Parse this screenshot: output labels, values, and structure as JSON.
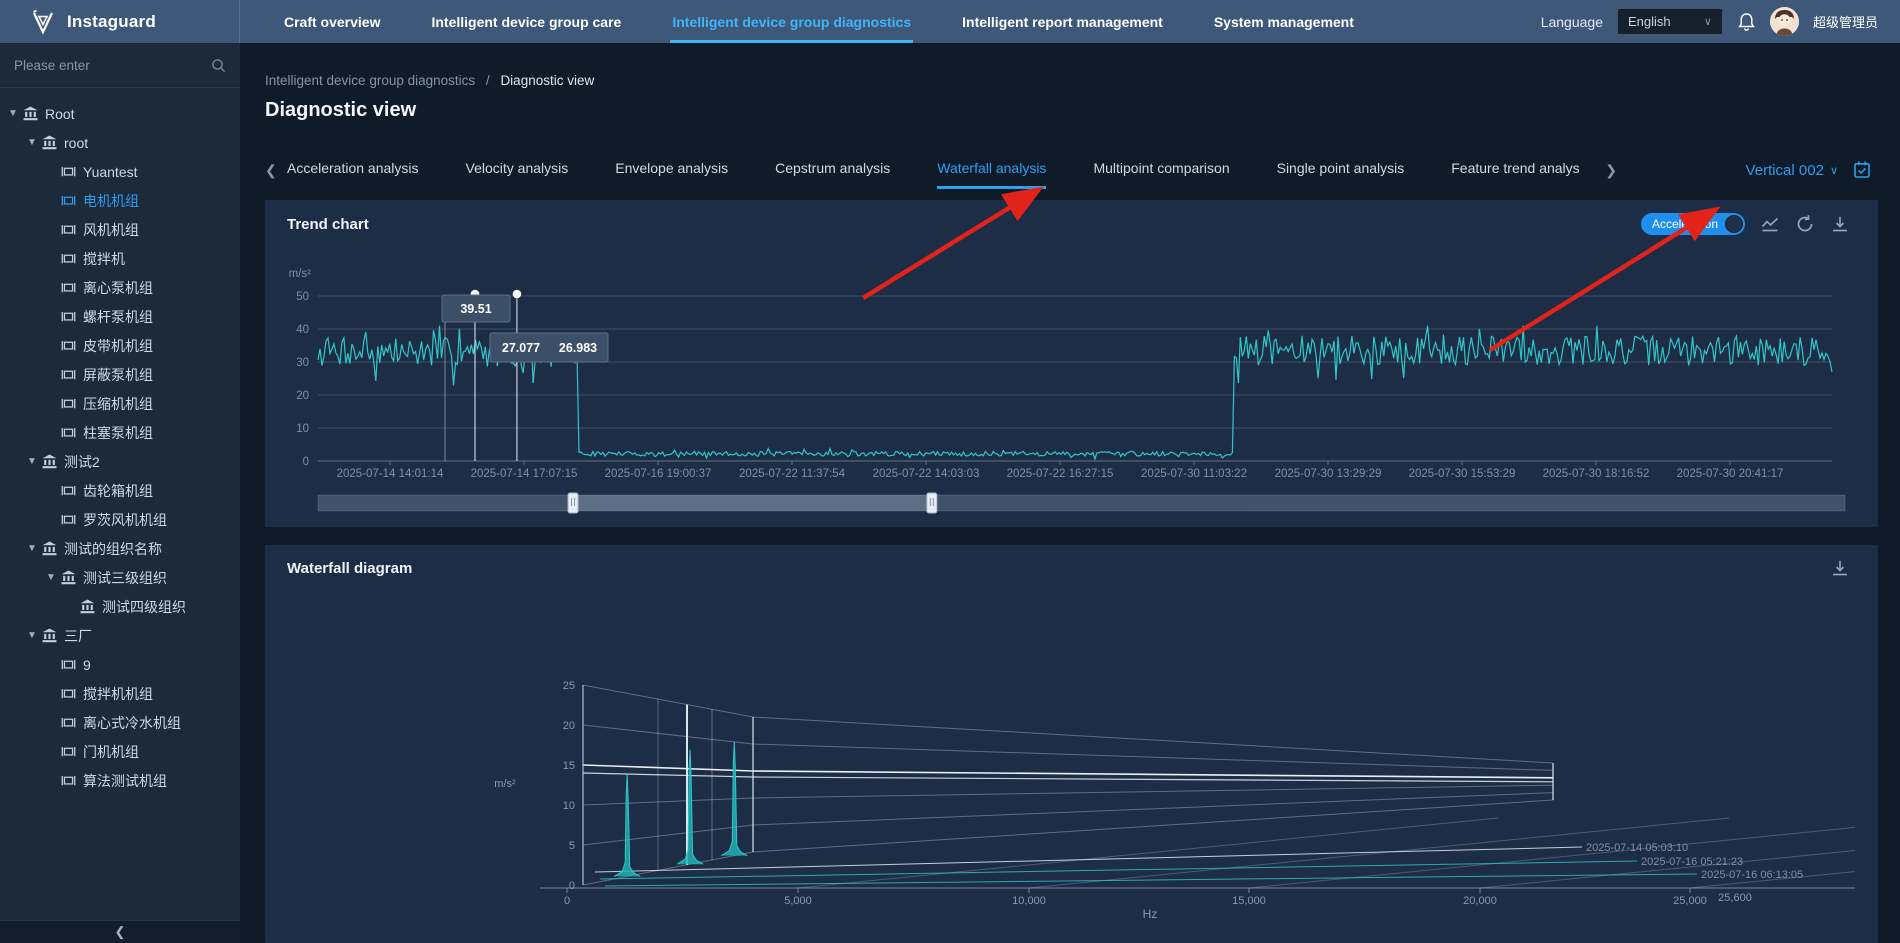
{
  "topnav": {
    "brand": "Instaguard",
    "items": [
      {
        "label": "Craft overview",
        "active": false
      },
      {
        "label": "Intelligent device group care",
        "active": false
      },
      {
        "label": "Intelligent device group diagnostics",
        "active": true
      },
      {
        "label": "Intelligent report management",
        "active": false
      },
      {
        "label": "System management",
        "active": false
      }
    ],
    "language_label": "Language",
    "language_value": "English",
    "user_name": "超级管理员"
  },
  "sidebar": {
    "search_placeholder": "Please enter",
    "tree": [
      {
        "label": "Root",
        "level": 0,
        "icon": "org",
        "caret": true,
        "selected": false
      },
      {
        "label": "root",
        "level": 1,
        "icon": "org",
        "caret": true,
        "selected": false
      },
      {
        "label": "Yuantest",
        "level": 2,
        "icon": "device",
        "caret": false,
        "selected": false
      },
      {
        "label": "电机机组",
        "level": 2,
        "icon": "device",
        "caret": false,
        "selected": true
      },
      {
        "label": "风机机组",
        "level": 2,
        "icon": "device",
        "caret": false,
        "selected": false
      },
      {
        "label": "搅拌机",
        "level": 2,
        "icon": "device",
        "caret": false,
        "selected": false
      },
      {
        "label": "离心泵机组",
        "level": 2,
        "icon": "device",
        "caret": false,
        "selected": false
      },
      {
        "label": "螺杆泵机组",
        "level": 2,
        "icon": "device",
        "caret": false,
        "selected": false
      },
      {
        "label": "皮带机机组",
        "level": 2,
        "icon": "device",
        "caret": false,
        "selected": false
      },
      {
        "label": "屏蔽泵机组",
        "level": 2,
        "icon": "device",
        "caret": false,
        "selected": false
      },
      {
        "label": "压缩机机组",
        "level": 2,
        "icon": "device",
        "caret": false,
        "selected": false
      },
      {
        "label": "柱塞泵机组",
        "level": 2,
        "icon": "device",
        "caret": false,
        "selected": false
      },
      {
        "label": "测试2",
        "level": 1,
        "icon": "org",
        "caret": true,
        "selected": false
      },
      {
        "label": "齿轮箱机组",
        "level": 2,
        "icon": "device",
        "caret": false,
        "selected": false
      },
      {
        "label": "罗茨风机机组",
        "level": 2,
        "icon": "device",
        "caret": false,
        "selected": false
      },
      {
        "label": "测试的组织名称",
        "level": 1,
        "icon": "org",
        "caret": true,
        "selected": false
      },
      {
        "label": "测试三级组织",
        "level": 2,
        "icon": "org",
        "caret": true,
        "selected": false
      },
      {
        "label": "测试四级组织",
        "level": 3,
        "icon": "org",
        "caret": false,
        "selected": false
      },
      {
        "label": "三厂",
        "level": 1,
        "icon": "org",
        "caret": true,
        "selected": false
      },
      {
        "label": "9",
        "level": 2,
        "icon": "device",
        "caret": false,
        "selected": false
      },
      {
        "label": "搅拌机机组",
        "level": 2,
        "icon": "device",
        "caret": false,
        "selected": false
      },
      {
        "label": "离心式冷水机组",
        "level": 2,
        "icon": "device",
        "caret": false,
        "selected": false
      },
      {
        "label": "门机机组",
        "level": 2,
        "icon": "device",
        "caret": false,
        "selected": false
      },
      {
        "label": "算法测试机组",
        "level": 2,
        "icon": "device",
        "caret": false,
        "selected": false
      }
    ]
  },
  "breadcrumb": {
    "parent": "Intelligent device group diagnostics",
    "separator": "/",
    "current": "Diagnostic view"
  },
  "page_title": "Diagnostic view",
  "tabs": {
    "items": [
      "Acceleration analysis",
      "Velocity analysis",
      "Envelope analysis",
      "Cepstrum analysis",
      "Waterfall analysis",
      "Multipoint comparison",
      "Single point analysis",
      "Feature trend analysis"
    ],
    "active_index": 4,
    "point_selector": "Vertical 002"
  },
  "trend_panel": {
    "title": "Trend chart",
    "toggle_label": "Acceleration"
  },
  "waterfall_panel": {
    "title": "Waterfall diagram"
  },
  "chart_data": [
    {
      "id": "trend",
      "type": "line",
      "title": "Trend chart",
      "ylabel": "m/s²",
      "ylim": [
        0,
        50
      ],
      "yticks": [
        0,
        10,
        20,
        30,
        40,
        50
      ],
      "xticklabels": [
        "2025-07-14 14:01:14",
        "2025-07-14 17:07:15",
        "2025-07-16 19:00:37",
        "2025-07-22 11:37:54",
        "2025-07-22 14:03:03",
        "2025-07-22 16:27:15",
        "2025-07-30 11:03:22",
        "2025-07-30 13:29:29",
        "2025-07-30 15:53:29",
        "2025-07-30 18:16:52",
        "2025-07-30 20:41:17"
      ],
      "grid": true,
      "legend_position": "none",
      "series": [
        {
          "name": "Acceleration",
          "color": "#2fc7c9",
          "segments": [
            {
              "from": 0.0,
              "to": 0.172,
              "base": 33,
              "noise": 4.5
            },
            {
              "from": 0.172,
              "to": 0.605,
              "base": 2.2,
              "noise": 0.7
            },
            {
              "from": 0.605,
              "to": 1.0,
              "base": 33.5,
              "noise": 4.5
            }
          ]
        }
      ],
      "markers": [
        {
          "x_frac": 0.1037,
          "dot": true
        },
        {
          "x_frac": 0.1314,
          "dot": true
        }
      ],
      "tooltips": [
        {
          "value": "39.51"
        },
        {
          "value": "27.077"
        },
        {
          "value": "26.983"
        }
      ],
      "datazoom": {
        "window": [
          0.167,
          0.402
        ]
      },
      "seed": 7
    },
    {
      "id": "waterfall",
      "type": "line3d-waterfall",
      "ylabel": "m/s²",
      "yticks": [
        0,
        5,
        10,
        15,
        20,
        25
      ],
      "ylim": [
        0,
        25
      ],
      "xlabel": "Hz",
      "xticklabels": [
        "0",
        "5,000",
        "10,000",
        "15,000",
        "20,000",
        "25,000"
      ],
      "x_max_label": "25,600",
      "slices": [
        {
          "time": "2025-07-14 05:03:10",
          "peak_hz_frac": 0.26,
          "peak": 14
        },
        {
          "time": "2025-07-16 05:21:23",
          "peak_hz_frac": 0.63,
          "peak": 18
        },
        {
          "time": "2025-07-16 06:13:05",
          "peak_hz_frac": 0.89,
          "peak": 20
        }
      ],
      "line_color": "#2fc7c9"
    }
  ],
  "annotations": {
    "color": "#e2231a",
    "arrows": [
      {
        "from": [
          863,
          298
        ],
        "to": [
          1038,
          190
        ]
      },
      {
        "from": [
          1490,
          350
        ],
        "to": [
          1715,
          210
        ]
      }
    ]
  }
}
